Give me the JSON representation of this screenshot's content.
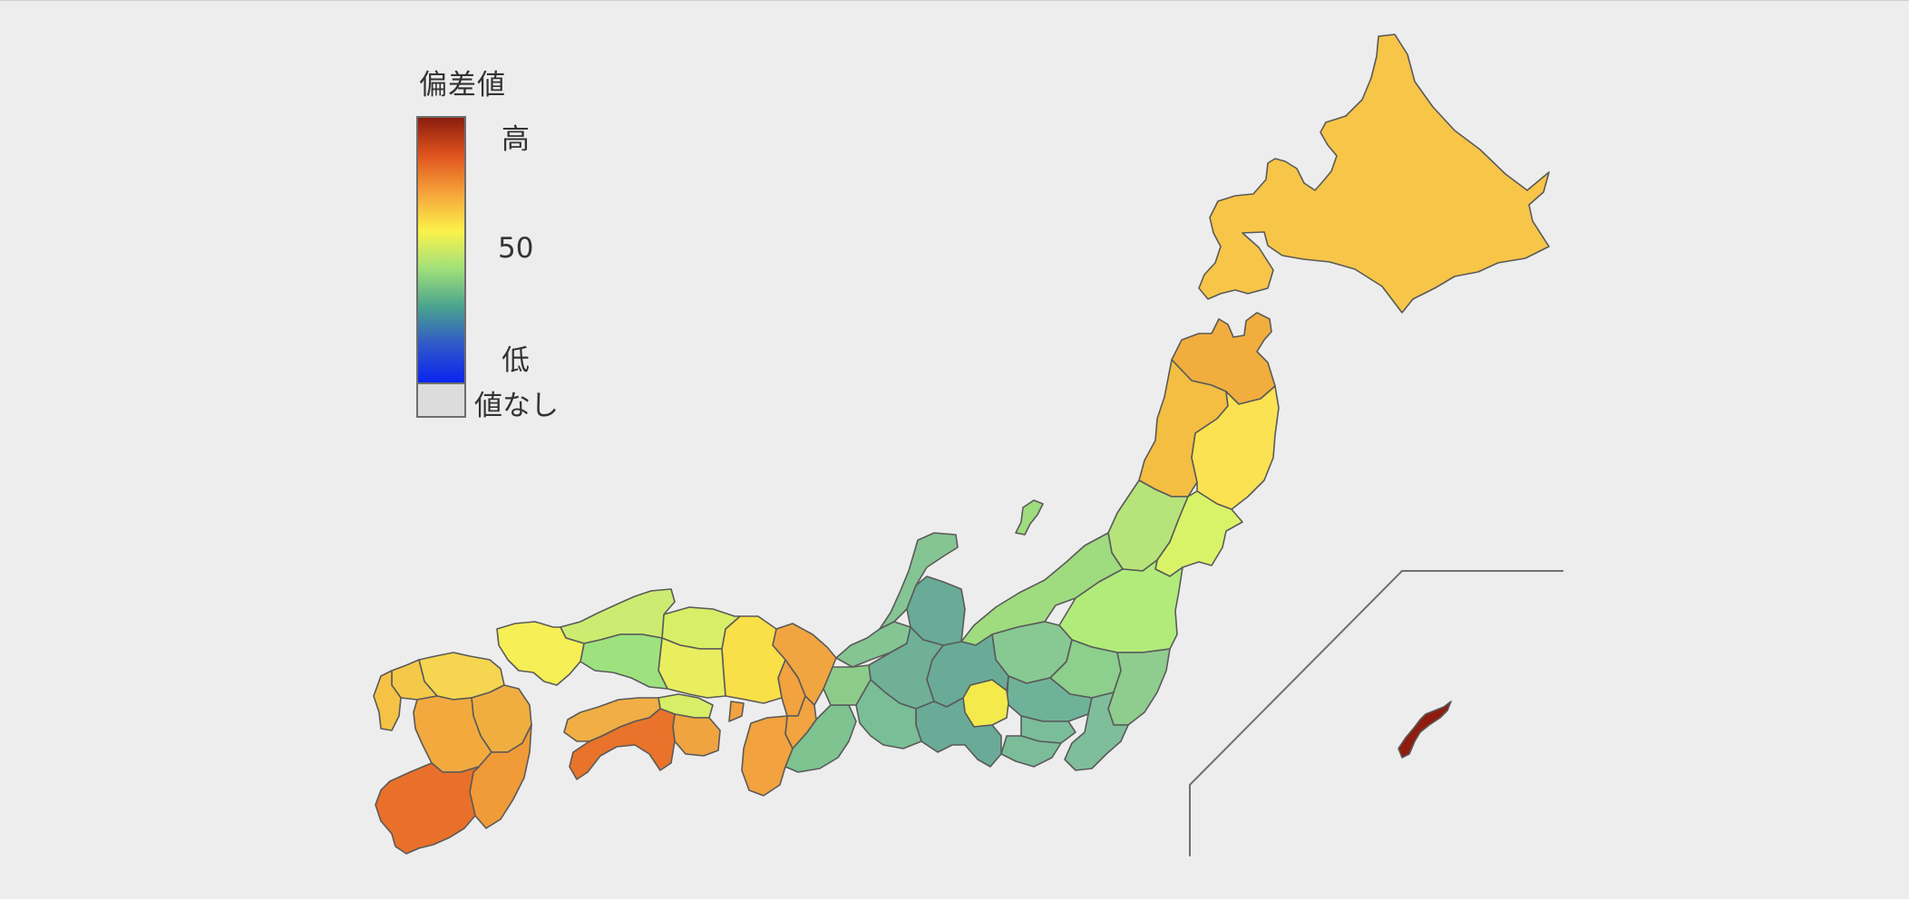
{
  "legend": {
    "title": "偏差値",
    "high_label": "高",
    "mid_label": "50",
    "low_label": "低",
    "no_value_label": "値なし",
    "gradient_colors": [
      "#8b1d0e",
      "#e0541e",
      "#f6a43a",
      "#fbf24b",
      "#9fe07a",
      "#4aa38f",
      "#3058c8",
      "#0a24f0"
    ],
    "no_value_color": "#dcdcdc"
  },
  "regions": {
    "hokkaido": "#f7c548",
    "tohoku": "#f6d146",
    "kanto_central": "#7fc59d",
    "chubu": "#5fa59a",
    "kinki": "#f2b34a",
    "chugoku": "#d9ee6e",
    "shikoku": "#e8962e",
    "kyushu": "#ee9a32",
    "okinawa": "#8e1c0f"
  }
}
